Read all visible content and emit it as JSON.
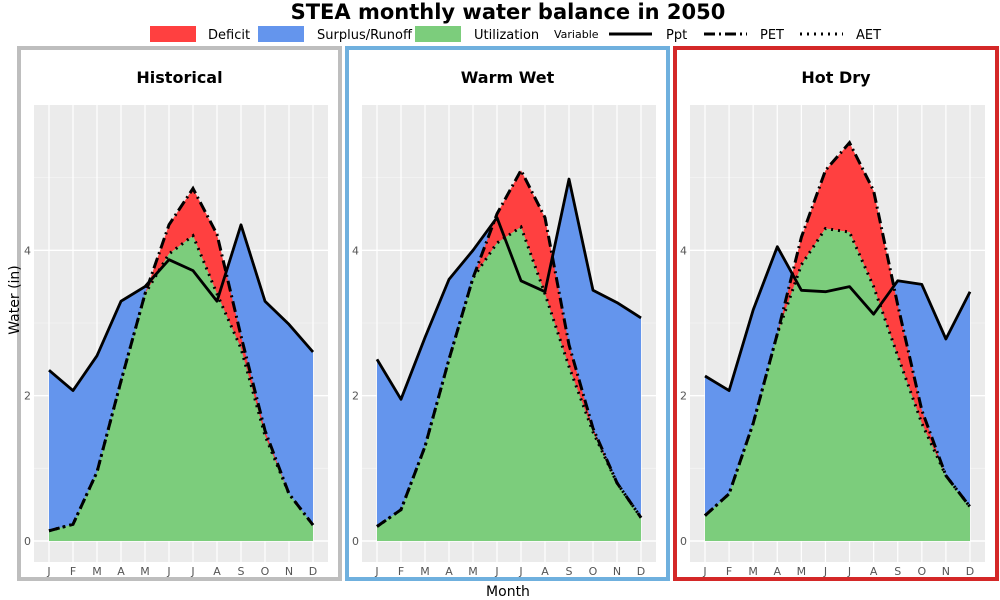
{
  "chart_data": {
    "type": "area",
    "title": "STEA monthly water balance in 2050",
    "xlabel": "Month",
    "ylabel": "Water (in)",
    "ylim": [
      0,
      5.6
    ],
    "yticks": [
      0,
      2,
      4
    ],
    "categories": [
      "J",
      "F",
      "M",
      "A",
      "M",
      "J",
      "J",
      "A",
      "S",
      "O",
      "N",
      "D"
    ],
    "legend": {
      "fills": [
        {
          "label": "Deficit",
          "color": "#ff4040"
        },
        {
          "label": "Surplus/Runoff",
          "color": "#6495ed"
        },
        {
          "label": "Utilization",
          "color": "#7ccd7c"
        }
      ],
      "lines_title": "Variable",
      "lines": [
        {
          "label": "Ppt",
          "style": "solid"
        },
        {
          "label": "PET",
          "style": "dashdot"
        },
        {
          "label": "AET",
          "style": "dotted"
        }
      ]
    },
    "panels": [
      {
        "title": "Historical",
        "border_color": "#bebebe",
        "series": [
          {
            "name": "Ppt",
            "values": [
              2.35,
              2.07,
              2.55,
              3.3,
              3.5,
              3.87,
              3.72,
              3.3,
              4.35,
              3.3,
              2.98,
              2.6
            ]
          },
          {
            "name": "PET",
            "values": [
              0.14,
              0.23,
              0.95,
              2.2,
              3.4,
              4.35,
              4.85,
              4.22,
              2.82,
              1.52,
              0.65,
              0.22
            ]
          },
          {
            "name": "AET",
            "values": [
              0.14,
              0.23,
              0.95,
              2.2,
              3.4,
              3.95,
              4.2,
              3.4,
              2.65,
              1.45,
              0.65,
              0.22
            ]
          }
        ]
      },
      {
        "title": "Warm Wet",
        "border_color": "#6fb0de",
        "series": [
          {
            "name": "Ppt",
            "values": [
              2.5,
              1.95,
              2.8,
              3.6,
              4.0,
              4.45,
              3.58,
              3.43,
              4.98,
              3.45,
              3.28,
              3.07
            ]
          },
          {
            "name": "PET",
            "values": [
              0.2,
              0.43,
              1.3,
              2.5,
              3.62,
              4.5,
              5.1,
              4.45,
              2.7,
              1.55,
              0.8,
              0.32
            ]
          },
          {
            "name": "AET",
            "values": [
              0.2,
              0.43,
              1.3,
              2.5,
              3.62,
              4.1,
              4.32,
              3.4,
              2.4,
              1.5,
              0.8,
              0.32
            ]
          }
        ]
      },
      {
        "title": "Hot Dry",
        "border_color": "#d42828",
        "series": [
          {
            "name": "Ppt",
            "values": [
              2.27,
              2.07,
              3.18,
              4.05,
              3.45,
              3.43,
              3.5,
              3.12,
              3.58,
              3.53,
              2.78,
              3.43
            ]
          },
          {
            "name": "PET",
            "values": [
              0.35,
              0.65,
              1.62,
              2.85,
              4.18,
              5.1,
              5.48,
              4.82,
              3.25,
              1.8,
              0.9,
              0.47
            ]
          },
          {
            "name": "AET",
            "values": [
              0.35,
              0.65,
              1.62,
              2.85,
              3.8,
              4.3,
              4.25,
              3.5,
              2.55,
              1.62,
              0.9,
              0.47
            ]
          }
        ]
      }
    ]
  }
}
